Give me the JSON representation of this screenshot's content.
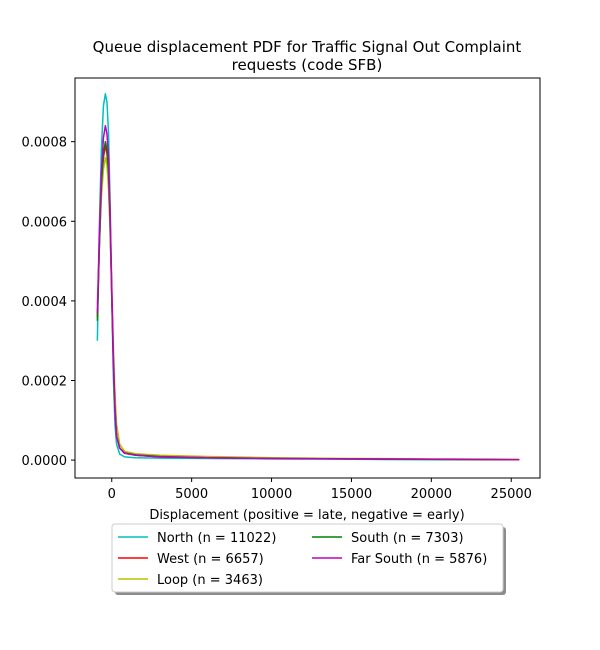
{
  "chart_data": {
    "type": "line",
    "title_lines": [
      "Queue displacement PDF for Traffic Signal Out Complaint",
      "requests (code SFB)"
    ],
    "xlabel": "Displacement (positive = late, negative = early)",
    "ylabel": "",
    "xlim": [
      -2300,
      26800
    ],
    "ylim": [
      -4.5e-05,
      0.00096
    ],
    "x_ticks": [
      0,
      5000,
      10000,
      15000,
      20000,
      25000
    ],
    "x_tick_labels": [
      "0",
      "5000",
      "10000",
      "15000",
      "20000",
      "25000"
    ],
    "y_ticks": [
      0.0,
      0.0002,
      0.0004,
      0.0006,
      0.0008
    ],
    "y_tick_labels": [
      "0.0000",
      "0.0002",
      "0.0004",
      "0.0006",
      "0.0008"
    ],
    "grid": false,
    "legend_position": "below-center",
    "series": [
      {
        "name": "North (n = 11022)",
        "color": "#00bfbf",
        "points": [
          [
            -900,
            0.0003
          ],
          [
            -780,
            0.00058
          ],
          [
            -650,
            0.00078
          ],
          [
            -520,
            0.00089
          ],
          [
            -400,
            0.00092
          ],
          [
            -300,
            0.0009
          ],
          [
            -200,
            0.00082
          ],
          [
            -100,
            0.00064
          ],
          [
            0,
            0.00041
          ],
          [
            100,
            0.00021
          ],
          [
            200,
            9e-05
          ],
          [
            300,
            4e-05
          ],
          [
            500,
            1.5e-05
          ],
          [
            800,
            8e-06
          ],
          [
            1500,
            6e-06
          ],
          [
            3000,
            5e-06
          ],
          [
            6000,
            4e-06
          ],
          [
            10000,
            3e-06
          ],
          [
            15000,
            2e-06
          ],
          [
            20000,
            1e-06
          ],
          [
            25500,
            1e-06
          ]
        ]
      },
      {
        "name": "West (n = 6657)",
        "color": "#ff0000",
        "points": [
          [
            -900,
            0.00036
          ],
          [
            -780,
            0.00053
          ],
          [
            -650,
            0.00068
          ],
          [
            -520,
            0.00076
          ],
          [
            -400,
            0.00079
          ],
          [
            -300,
            0.00077
          ],
          [
            -200,
            0.00071
          ],
          [
            -100,
            0.00058
          ],
          [
            0,
            0.00041
          ],
          [
            100,
            0.00025
          ],
          [
            200,
            0.00013
          ],
          [
            300,
            6e-05
          ],
          [
            500,
            3e-05
          ],
          [
            800,
            1.8e-05
          ],
          [
            1500,
            1.2e-05
          ],
          [
            3000,
            8e-06
          ],
          [
            6000,
            6e-06
          ],
          [
            10000,
            4e-06
          ],
          [
            15000,
            3e-06
          ],
          [
            20000,
            2e-06
          ],
          [
            25500,
            1e-06
          ]
        ]
      },
      {
        "name": "Loop (n = 3463)",
        "color": "#bfbf00",
        "points": [
          [
            -900,
            0.00039
          ],
          [
            -780,
            0.00054
          ],
          [
            -650,
            0.00066
          ],
          [
            -520,
            0.00073
          ],
          [
            -400,
            0.00076
          ],
          [
            -300,
            0.00074
          ],
          [
            -200,
            0.00068
          ],
          [
            -100,
            0.00057
          ],
          [
            0,
            0.00043
          ],
          [
            100,
            0.00029
          ],
          [
            200,
            0.00017
          ],
          [
            300,
            9e-05
          ],
          [
            500,
            4e-05
          ],
          [
            800,
            2.2e-05
          ],
          [
            1500,
            1.6e-05
          ],
          [
            3000,
            1.2e-05
          ],
          [
            6000,
            9e-06
          ],
          [
            10000,
            6e-06
          ],
          [
            15000,
            4e-06
          ],
          [
            20000,
            3e-06
          ],
          [
            25500,
            2e-06
          ]
        ]
      },
      {
        "name": "South (n = 7303)",
        "color": "#008000",
        "points": [
          [
            -900,
            0.00035
          ],
          [
            -780,
            0.00053
          ],
          [
            -650,
            0.00069
          ],
          [
            -520,
            0.00077
          ],
          [
            -400,
            0.0008
          ],
          [
            -300,
            0.00078
          ],
          [
            -200,
            0.00072
          ],
          [
            -100,
            0.00059
          ],
          [
            0,
            0.00042
          ],
          [
            100,
            0.00025
          ],
          [
            200,
            0.00013
          ],
          [
            300,
            6e-05
          ],
          [
            500,
            3e-05
          ],
          [
            800,
            1.8e-05
          ],
          [
            1500,
            1.3e-05
          ],
          [
            3000,
            9e-06
          ],
          [
            6000,
            6e-06
          ],
          [
            10000,
            4e-06
          ],
          [
            15000,
            3e-06
          ],
          [
            20000,
            2e-06
          ],
          [
            25500,
            1e-06
          ]
        ]
      },
      {
        "name": "Far South (n = 5876)",
        "color": "#bf00bf",
        "points": [
          [
            -900,
            0.00037
          ],
          [
            -780,
            0.00056
          ],
          [
            -650,
            0.00072
          ],
          [
            -520,
            0.00081
          ],
          [
            -400,
            0.00084
          ],
          [
            -300,
            0.00082
          ],
          [
            -200,
            0.00076
          ],
          [
            -100,
            0.00062
          ],
          [
            0,
            0.00044
          ],
          [
            100,
            0.00026
          ],
          [
            200,
            0.00013
          ],
          [
            300,
            6e-05
          ],
          [
            500,
            3e-05
          ],
          [
            800,
            1.7e-05
          ],
          [
            1500,
            1.2e-05
          ],
          [
            3000,
            8e-06
          ],
          [
            6000,
            6e-06
          ],
          [
            10000,
            4e-06
          ],
          [
            15000,
            3e-06
          ],
          [
            20000,
            2e-06
          ],
          [
            25500,
            1e-06
          ]
        ]
      }
    ]
  }
}
